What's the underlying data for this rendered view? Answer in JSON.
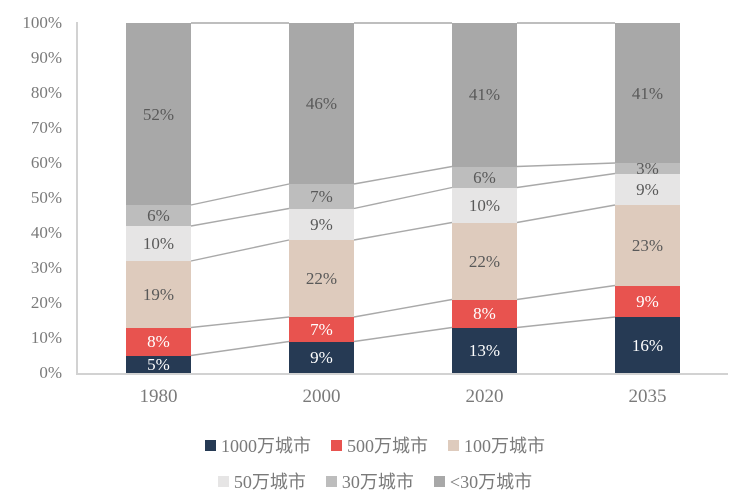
{
  "chart_data": {
    "type": "bar",
    "subtype": "stacked-100-percent",
    "title": "",
    "xlabel": "",
    "ylabel": "",
    "categories": [
      "1980",
      "2000",
      "2020",
      "2035"
    ],
    "series": [
      {
        "name": "1000万城市",
        "color": "#263a54",
        "label_color": "#ffffff",
        "values": [
          5,
          9,
          13,
          16
        ],
        "labels": [
          "5%",
          "9%",
          "13%",
          "16%"
        ]
      },
      {
        "name": "500万城市",
        "color": "#e8534f",
        "label_color": "#ffffff",
        "values": [
          8,
          7,
          8,
          9
        ],
        "labels": [
          "8%",
          "7%",
          "8%",
          "9%"
        ]
      },
      {
        "name": "100万城市",
        "color": "#decbbd",
        "label_color": "#595959",
        "values": [
          19,
          22,
          22,
          23
        ],
        "labels": [
          "19%",
          "22%",
          "22%",
          "23%"
        ]
      },
      {
        "name": "50万城市",
        "color": "#e6e5e5",
        "label_color": "#595959",
        "values": [
          10,
          9,
          10,
          9
        ],
        "labels": [
          "10%",
          "9%",
          "10%",
          "9%"
        ]
      },
      {
        "name": "30万城市",
        "color": "#bdbdbd",
        "label_color": "#595959",
        "values": [
          6,
          7,
          6,
          3
        ],
        "labels": [
          "6%",
          "7%",
          "6%",
          "3%"
        ]
      },
      {
        "name": "<30万城市",
        "color": "#a8a8a8",
        "label_color": "#595959",
        "values": [
          52,
          46,
          41,
          41
        ],
        "labels": [
          "52%",
          "46%",
          "41%",
          "41%"
        ]
      }
    ],
    "y_ticks": [
      "0%",
      "10%",
      "20%",
      "30%",
      "40%",
      "50%",
      "60%",
      "70%",
      "80%",
      "90%",
      "100%"
    ],
    "ylim": [
      0,
      100
    ],
    "grid": false,
    "series_connector_lines": true,
    "legend_position": "bottom",
    "legend_rows": [
      [
        0,
        1,
        2
      ],
      [
        3,
        4,
        5
      ]
    ],
    "colors": {
      "axis_line": "#d2d2d2",
      "axis_text": "#7a7a7a",
      "connector_line": "#a9a9a9"
    }
  }
}
